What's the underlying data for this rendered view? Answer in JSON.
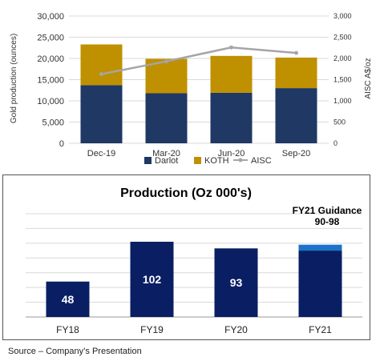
{
  "charts": [
    {
      "type": "bar",
      "stacked": true,
      "categories": [
        "Dec-19",
        "Mar-20",
        "Jun-20",
        "Sep-20"
      ],
      "series": [
        {
          "name": "Darlot",
          "kind": "bar",
          "values": [
            13700,
            11800,
            11900,
            13000
          ],
          "color": "#1f3864"
        },
        {
          "name": "KOTH",
          "kind": "bar",
          "values": [
            9600,
            8100,
            8700,
            7200
          ],
          "color": "#bf9000"
        },
        {
          "name": "AISC",
          "kind": "line",
          "axis": "right",
          "values": [
            1630,
            1930,
            2260,
            2130
          ],
          "color": "#a5a5a5"
        }
      ],
      "ylabel": "Gold production (ounces)",
      "y2label": "AISC A$/oz",
      "ylim": [
        0,
        30000
      ],
      "y2lim": [
        0,
        3000
      ],
      "yticks": [
        "0",
        "5,000",
        "10,000",
        "15,000",
        "20,000",
        "25,000",
        "30,000"
      ],
      "y2ticks": [
        "0",
        "500",
        "1,000",
        "1,500",
        "2,000",
        "2,500",
        "3,000"
      ],
      "grid": true,
      "legend": "bottom"
    },
    {
      "type": "bar",
      "title": "Production (Oz 000's)",
      "categories": [
        "FY18",
        "FY19",
        "FY20",
        "FY21"
      ],
      "values": [
        48,
        102,
        93,
        90
      ],
      "value_labels": [
        "48",
        "102",
        "93",
        ""
      ],
      "guidance_range": [
        90,
        98
      ],
      "annotation": [
        "FY21 Guidance",
        "90-98"
      ],
      "ylim": [
        0,
        140
      ],
      "grid": true,
      "bar_color": "#0a1f63",
      "guidance_color": "#1a73c9"
    }
  ],
  "source": "Source – Company’s Presentation"
}
